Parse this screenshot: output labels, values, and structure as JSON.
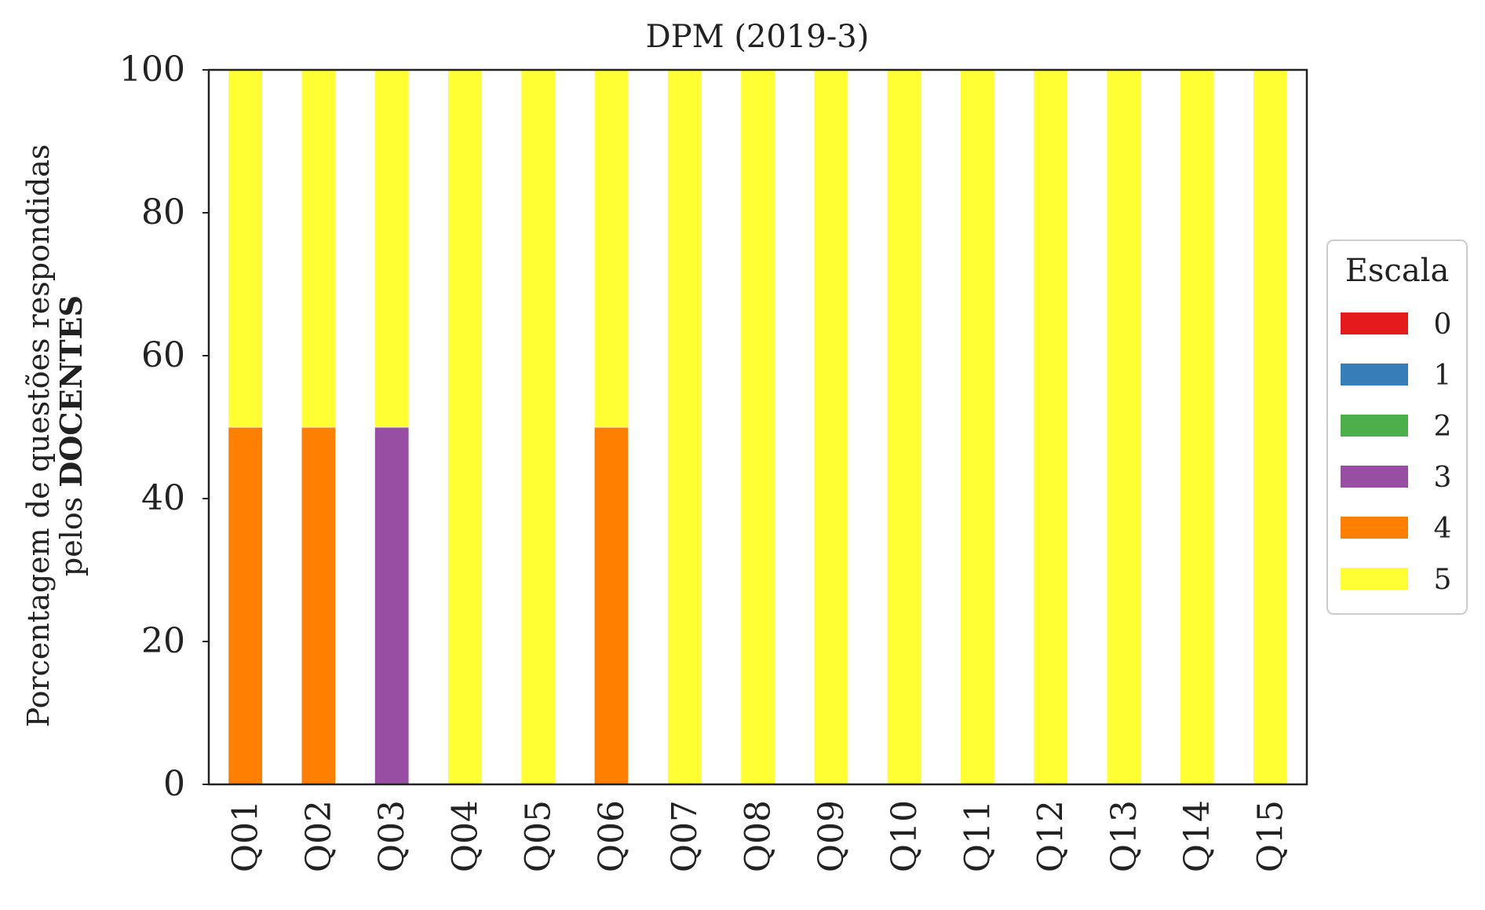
{
  "chart_data": {
    "type": "bar",
    "stacked": true,
    "title": "DPM (2019-3)",
    "ylabel_line1": "Porcentagem de questões respondidas",
    "ylabel_line2_prefix": "pelos ",
    "ylabel_line2_bold": "DOCENTES",
    "xlabel": "",
    "ylim": [
      0,
      100
    ],
    "yticks": [
      "0",
      "20",
      "40",
      "60",
      "80",
      "100"
    ],
    "grid": false,
    "legend_placement": "right",
    "legend_title": "Escala",
    "categories": [
      "Q01",
      "Q02",
      "Q03",
      "Q04",
      "Q05",
      "Q06",
      "Q07",
      "Q08",
      "Q09",
      "Q10",
      "Q11",
      "Q12",
      "Q13",
      "Q14",
      "Q15"
    ],
    "series": [
      {
        "name": "0",
        "color": "#e41a1c",
        "values": [
          0,
          0,
          0,
          0,
          0,
          0,
          0,
          0,
          0,
          0,
          0,
          0,
          0,
          0,
          0
        ]
      },
      {
        "name": "1",
        "color": "#377eb8",
        "values": [
          0,
          0,
          0,
          0,
          0,
          0,
          0,
          0,
          0,
          0,
          0,
          0,
          0,
          0,
          0
        ]
      },
      {
        "name": "2",
        "color": "#4daf4a",
        "values": [
          0,
          0,
          0,
          0,
          0,
          0,
          0,
          0,
          0,
          0,
          0,
          0,
          0,
          0,
          0
        ]
      },
      {
        "name": "3",
        "color": "#984ea3",
        "values": [
          0,
          0,
          50,
          0,
          0,
          0,
          0,
          0,
          0,
          0,
          0,
          0,
          0,
          0,
          0
        ]
      },
      {
        "name": "4",
        "color": "#ff7f00",
        "values": [
          50,
          50,
          0,
          0,
          0,
          50,
          0,
          0,
          0,
          0,
          0,
          0,
          0,
          0,
          0
        ]
      },
      {
        "name": "5",
        "color": "#ffff33",
        "values": [
          50,
          50,
          50,
          100,
          100,
          50,
          100,
          100,
          100,
          100,
          100,
          100,
          100,
          100,
          100
        ]
      }
    ]
  }
}
